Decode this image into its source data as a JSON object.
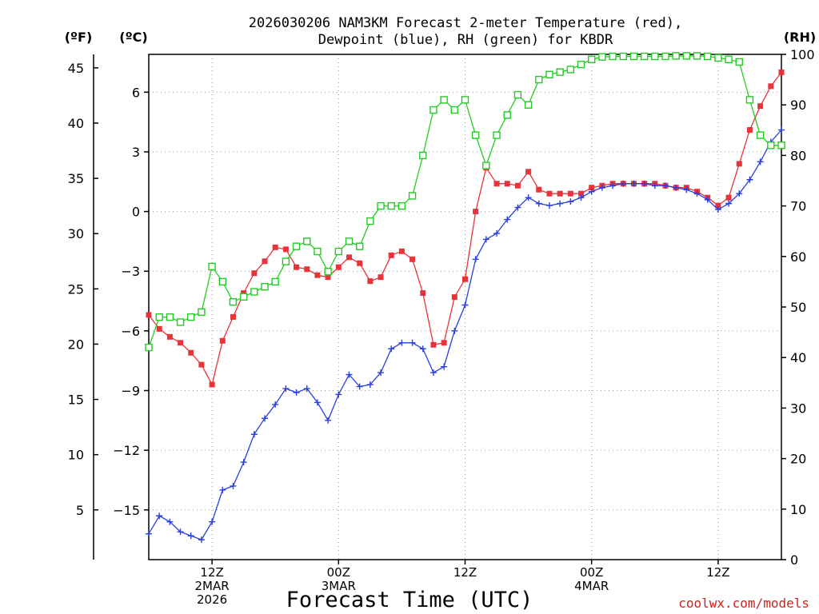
{
  "chart_data": {
    "type": "line",
    "title_lines": [
      "2026030206 NAM3KM Forecast 2-meter Temperature (red),",
      "Dewpoint (blue), RH (green) for KBDR"
    ],
    "unit_labels": {
      "fahrenheit": "(ºF)",
      "celsius": "(ºC)",
      "rh": "(RH)"
    },
    "xlabel": "Forecast Time (UTC)",
    "credit": "coolwx.com/models",
    "x_ticks": [
      {
        "hour": 6,
        "lines": [
          "12Z",
          "2MAR",
          "2026"
        ]
      },
      {
        "hour": 18,
        "lines": [
          "00Z",
          "3MAR"
        ]
      },
      {
        "hour": 30,
        "lines": [
          "12Z"
        ]
      },
      {
        "hour": 42,
        "lines": [
          "00Z",
          "4MAR"
        ]
      },
      {
        "hour": 54,
        "lines": [
          "12Z"
        ]
      }
    ],
    "xlim": [
      0,
      60
    ],
    "ylim_celsius": [
      -17.5,
      7.9
    ],
    "ylim_rh": [
      0,
      100
    ],
    "yticks_celsius": [
      "6",
      "3",
      "0",
      "−3",
      "−6",
      "−9",
      "−12",
      "−15"
    ],
    "yticks_fahrenheit": [
      "45",
      "40",
      "35",
      "30",
      "25",
      "20",
      "15",
      "10",
      "5"
    ],
    "yticks_rh": [
      "100",
      "90",
      "80",
      "70",
      "60",
      "50",
      "40",
      "30",
      "20",
      "10",
      "0"
    ],
    "grid": true,
    "series": [
      {
        "name": "Temperature",
        "color": "#e8333a",
        "marker": "filled-square",
        "axis": "celsius",
        "values": [
          -5.2,
          -5.9,
          -6.3,
          -6.6,
          -7.1,
          -7.7,
          -8.7,
          -6.5,
          -5.3,
          -4.1,
          -3.1,
          -2.5,
          -1.8,
          -1.9,
          -2.8,
          -2.9,
          -3.2,
          -3.3,
          -2.8,
          -2.3,
          -2.6,
          -3.5,
          -3.3,
          -2.2,
          -2.0,
          -2.4,
          -4.1,
          -6.7,
          -6.6,
          -4.3,
          -3.4,
          0.0,
          2.2,
          1.4,
          1.4,
          1.3,
          2.0,
          1.1,
          0.9,
          0.9,
          0.9,
          0.9,
          1.2,
          1.3,
          1.4,
          1.4,
          1.4,
          1.4,
          1.4,
          1.3,
          1.2,
          1.2,
          1.0,
          0.7,
          0.3,
          0.7,
          2.4,
          4.1,
          5.3,
          6.3,
          7.0
        ]
      },
      {
        "name": "Dewpoint",
        "color": "#2a3fe0",
        "marker": "plus",
        "axis": "celsius",
        "values": [
          -16.2,
          -15.3,
          -15.6,
          -16.1,
          -16.3,
          -16.5,
          -15.6,
          -14.0,
          -13.8,
          -12.6,
          -11.2,
          -10.4,
          -9.7,
          -8.9,
          -9.1,
          -8.9,
          -9.6,
          -10.5,
          -9.2,
          -8.2,
          -8.8,
          -8.7,
          -8.1,
          -6.9,
          -6.6,
          -6.6,
          -6.9,
          -8.1,
          -7.8,
          -6.0,
          -4.7,
          -2.4,
          -1.4,
          -1.1,
          -0.4,
          0.2,
          0.7,
          0.4,
          0.3,
          0.4,
          0.5,
          0.7,
          1.0,
          1.2,
          1.3,
          1.4,
          1.4,
          1.4,
          1.3,
          1.3,
          1.2,
          1.1,
          0.9,
          0.6,
          0.1,
          0.4,
          0.9,
          1.6,
          2.5,
          3.5,
          4.1
        ]
      },
      {
        "name": "RH",
        "color": "#22cc22",
        "marker": "open-square",
        "axis": "rh",
        "values": [
          42,
          48,
          48,
          47,
          48,
          49,
          58,
          55,
          51,
          52,
          53,
          54,
          55,
          59,
          62,
          63,
          61,
          57,
          61,
          63,
          62,
          67,
          70,
          70,
          70,
          72,
          80,
          89,
          91,
          89,
          91,
          84,
          78,
          84,
          88,
          92,
          90,
          95,
          96,
          96.5,
          97,
          98,
          99,
          99.5,
          99.6,
          99.6,
          99.6,
          99.6,
          99.6,
          99.6,
          99.7,
          99.7,
          99.7,
          99.6,
          99.3,
          99,
          98.5,
          91,
          84,
          82,
          82
        ]
      }
    ]
  }
}
